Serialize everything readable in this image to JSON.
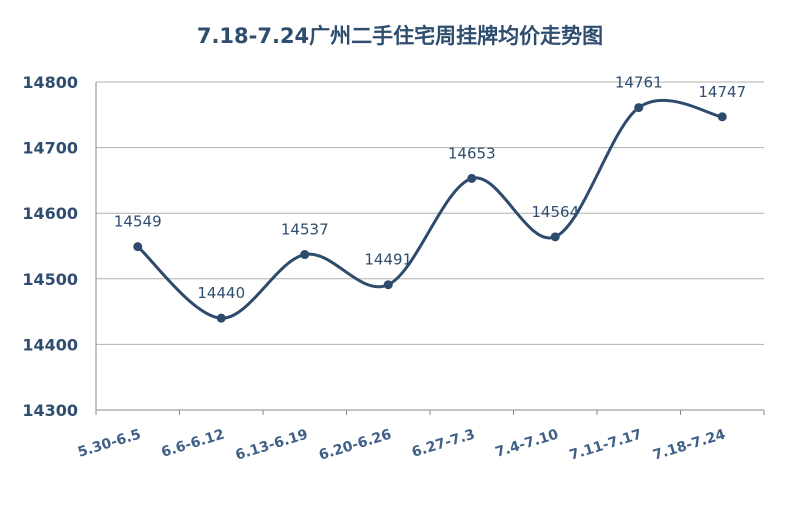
{
  "chart_data": {
    "type": "line",
    "title": "7.18-7.24广州二手住宅周挂牌均价走势图",
    "categories": [
      "5.30-6.5",
      "6.6-6.12",
      "6.13-6.19",
      "6.20-6.26",
      "6.27-7.3",
      "7.4-7.10",
      "7.11-7.17",
      "7.18-7.24"
    ],
    "series": [
      {
        "values": [
          14549,
          14440,
          14537,
          14491,
          14653,
          14564,
          14761,
          14747
        ]
      }
    ],
    "ylim": [
      14300,
      14800
    ],
    "yticks": [
      14300,
      14400,
      14500,
      14600,
      14700,
      14800
    ],
    "xlabel": "",
    "ylabel": "",
    "grid": true,
    "smooth": true,
    "data_labels": true,
    "colors": {
      "line": "#2e4a6d",
      "grid": "#b0b0b0",
      "title": "#2f4e6f"
    }
  }
}
